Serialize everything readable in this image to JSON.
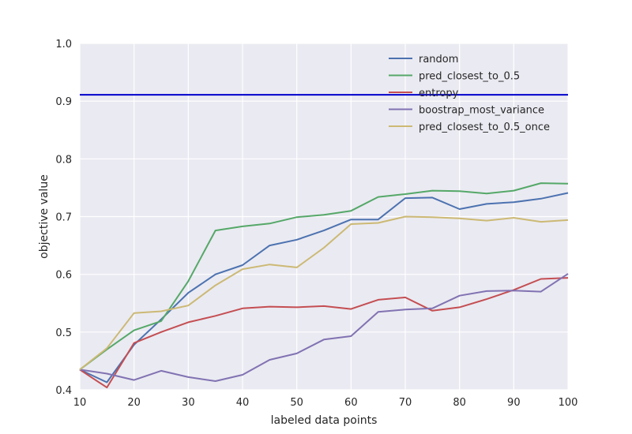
{
  "chart_data": {
    "type": "line",
    "xlabel": "labeled data points",
    "ylabel": "objective value",
    "xlim": [
      10,
      100
    ],
    "ylim": [
      0.4,
      1.0
    ],
    "xticks": [
      "10",
      "20",
      "30",
      "40",
      "50",
      "60",
      "70",
      "80",
      "90",
      "100"
    ],
    "yticks": [
      "0.4",
      "0.5",
      "0.6",
      "0.7",
      "0.8",
      "0.9",
      "1.0"
    ],
    "grid": true,
    "legend_position": "top-right",
    "background_color": "#eaeaf2",
    "x": [
      10,
      15,
      20,
      25,
      30,
      35,
      40,
      45,
      50,
      55,
      60,
      65,
      70,
      75,
      80,
      85,
      90,
      95,
      100
    ],
    "series": [
      {
        "name": "random",
        "color": "#4c72b0",
        "values": [
          0.435,
          0.413,
          0.478,
          0.522,
          0.568,
          0.6,
          0.616,
          0.65,
          0.66,
          0.676,
          0.695,
          0.695,
          0.732,
          0.733,
          0.713,
          0.722,
          0.725,
          0.731,
          0.741
        ]
      },
      {
        "name": "pred_closest_to_0.5",
        "color": "#55a868",
        "values": [
          0.435,
          0.47,
          0.503,
          0.519,
          0.588,
          0.676,
          0.683,
          0.688,
          0.699,
          0.703,
          0.71,
          0.734,
          0.739,
          0.745,
          0.744,
          0.74,
          0.745,
          0.758,
          0.757
        ]
      },
      {
        "name": "entropy",
        "color": "#c44e52",
        "values": [
          0.435,
          0.404,
          0.481,
          0.5,
          0.517,
          0.528,
          0.541,
          0.544,
          0.543,
          0.545,
          0.54,
          0.556,
          0.56,
          0.537,
          0.543,
          0.557,
          0.573,
          0.592,
          0.594
        ]
      },
      {
        "name": "boostrap_most_variance",
        "color": "#8172b2",
        "values": [
          0.435,
          0.428,
          0.417,
          0.433,
          0.422,
          0.415,
          0.426,
          0.452,
          0.463,
          0.487,
          0.493,
          0.535,
          0.539,
          0.541,
          0.563,
          0.571,
          0.572,
          0.57,
          0.601
        ]
      },
      {
        "name": "pred_closest_to_0.5_once",
        "color": "#ccb974",
        "values": [
          0.435,
          0.472,
          0.533,
          0.536,
          0.546,
          0.581,
          0.609,
          0.617,
          0.612,
          0.646,
          0.687,
          0.689,
          0.7,
          0.699,
          0.697,
          0.693,
          0.698,
          0.691,
          0.694
        ]
      }
    ],
    "reference_line": {
      "y": 0.911,
      "color": "#0000cc"
    }
  }
}
